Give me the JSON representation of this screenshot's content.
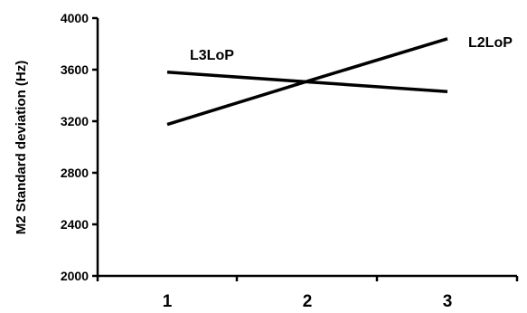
{
  "chart_data": {
    "type": "line",
    "title": "",
    "xlabel": "",
    "ylabel": "M2 Standard deviation (Hz)",
    "x": [
      "1",
      "2",
      "3"
    ],
    "ylim": [
      2000,
      4000
    ],
    "yticks": [
      "2000",
      "2400",
      "2800",
      "3200",
      "3600",
      "4000"
    ],
    "grid": false,
    "series": [
      {
        "name": "L3LoP",
        "values": [
          3580,
          3505,
          3430
        ]
      },
      {
        "name": "L2LoP",
        "values": [
          3175,
          3510,
          3840
        ]
      }
    ]
  }
}
